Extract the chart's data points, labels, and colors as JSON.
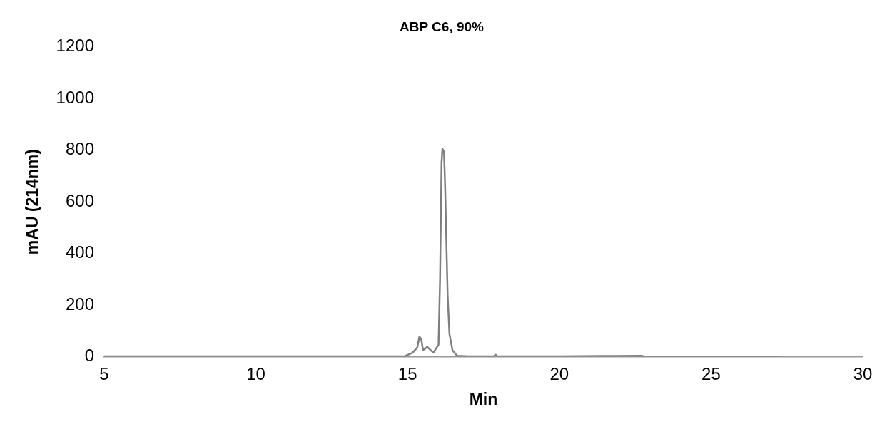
{
  "chart_data": {
    "type": "line",
    "title": "ABP C6, 90%",
    "xlabel": "Min",
    "ylabel": "mAU (214nm)",
    "x": [
      5,
      10,
      14.9,
      15.16,
      15.32,
      15.39,
      15.45,
      15.51,
      15.65,
      15.85,
      16.02,
      16.07,
      16.12,
      16.15,
      16.2,
      16.24,
      16.28,
      16.32,
      16.38,
      16.48,
      16.63,
      17,
      17.85,
      17.9,
      17.95,
      20,
      21.5,
      21.9,
      22.7,
      22.8,
      25,
      27.3
    ],
    "series": [
      {
        "color": "#7f7f7f",
        "values": [
          2,
          2,
          2,
          15,
          36,
          78,
          67,
          25,
          38,
          16,
          47,
          300,
          752,
          805,
          795,
          647,
          436,
          237,
          88,
          25,
          4,
          2,
          2,
          8,
          2,
          2,
          3,
          3,
          4,
          2,
          1,
          1
        ]
      }
    ],
    "xlim": [
      5,
      30
    ],
    "xticks": [
      5,
      10,
      15,
      20,
      25,
      30
    ],
    "ylim": [
      0,
      1200
    ],
    "yticks": [
      0,
      200,
      400,
      600,
      800,
      1000,
      1200
    ],
    "grid": false,
    "legend": false,
    "marker": "none",
    "line_style": "solid"
  }
}
